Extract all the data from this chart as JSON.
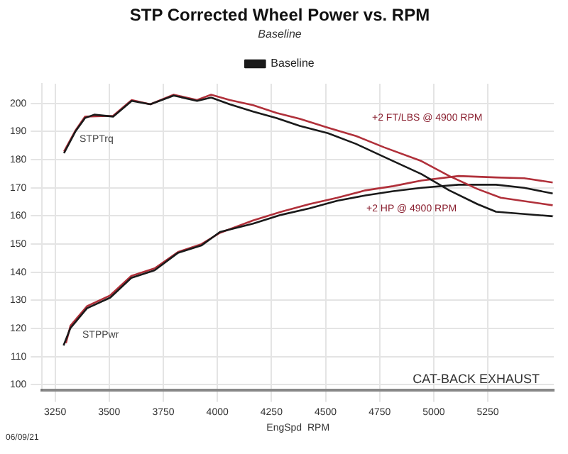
{
  "chart_data": {
    "type": "line",
    "title": "STP Corrected Wheel Power vs. RPM",
    "subtitle": "Baseline",
    "xlabel": "EngSpd  RPM",
    "xlim": [
      3190,
      5555
    ],
    "xticks": [
      3250,
      3500,
      3750,
      4000,
      4250,
      4500,
      4750,
      5000,
      5250
    ],
    "ylim": [
      98,
      207
    ],
    "yticks": [
      100,
      110,
      120,
      130,
      140,
      150,
      160,
      170,
      180,
      190,
      200
    ],
    "grid": true,
    "legend": "top",
    "marker": "none",
    "line_style": "solid",
    "series": [
      {
        "name": "Baseline",
        "color": "#1a1a1a",
        "x": [
          3291,
          3345,
          3388,
          3431,
          3518,
          3604,
          3690,
          3798,
          3906,
          3971,
          4057,
          4165,
          4274,
          4381,
          4511,
          4641,
          4770,
          4943,
          5072,
          5202,
          5288,
          5550
        ],
        "values": [
          182.3,
          190.2,
          194.8,
          196.0,
          195.3,
          200.9,
          199.7,
          202.8,
          200.9,
          202.1,
          199.7,
          197.1,
          194.8,
          192.0,
          189.4,
          185.6,
          181.0,
          174.9,
          169.1,
          164.2,
          161.5,
          159.9
        ]
      },
      {
        "color": "#b0303a",
        "x": [
          3291,
          3345,
          3388,
          3518,
          3604,
          3690,
          3798,
          3906,
          3971,
          4057,
          4165,
          4274,
          4381,
          4511,
          4641,
          4770,
          4943,
          5072,
          5202,
          5310,
          5550
        ],
        "values": [
          182.9,
          190.5,
          195.3,
          195.6,
          201.2,
          199.7,
          203.1,
          201.2,
          203.1,
          201.2,
          199.4,
          196.6,
          194.5,
          191.4,
          188.4,
          184.4,
          179.5,
          174.2,
          169.6,
          166.5,
          163.8
        ]
      },
      {
        "color": "#1a1a1a",
        "x": [
          3289,
          3321,
          3397,
          3505,
          3602,
          3710,
          3818,
          3926,
          4012,
          4165,
          4295,
          4425,
          4554,
          4684,
          4813,
          4943,
          5115,
          5288,
          5418,
          5550
        ],
        "values": [
          114.0,
          120.2,
          127.2,
          131.0,
          138.0,
          140.7,
          146.9,
          149.5,
          154.3,
          157.3,
          160.4,
          162.7,
          165.4,
          167.3,
          168.8,
          170.0,
          171.1,
          171.1,
          170.0,
          168.0
        ]
      },
      {
        "color": "#b0303a",
        "x": [
          3300,
          3321,
          3397,
          3505,
          3602,
          3710,
          3818,
          3926,
          4012,
          4165,
          4295,
          4425,
          4554,
          4684,
          4813,
          4943,
          5115,
          5288,
          5418,
          5550
        ],
        "values": [
          114.8,
          121.0,
          127.9,
          131.8,
          138.7,
          141.4,
          147.2,
          150.0,
          154.0,
          158.4,
          161.5,
          164.2,
          166.5,
          169.1,
          170.6,
          172.6,
          174.2,
          173.7,
          173.4,
          171.9
        ]
      }
    ],
    "annotations": [
      "STPTrq",
      "STPPwr",
      "+2 FT/LBS @ 4900 RPM",
      "+2 HP @ 4900 RPM",
      "CAT-BACK EXHAUST",
      "06/09/21"
    ]
  }
}
